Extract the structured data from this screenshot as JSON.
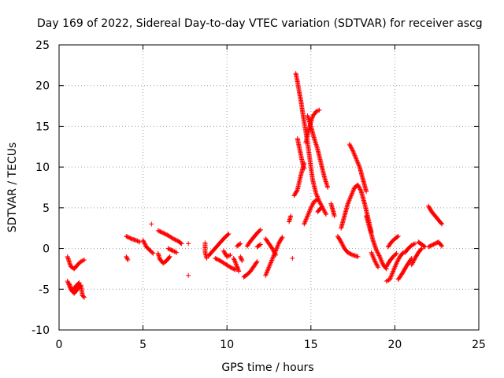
{
  "chart_data": {
    "type": "scatter",
    "title": "Day 169 of 2022, Sidereal Day-to-day VTEC variation (SDTVAR) for receiver ascg",
    "xlabel": "GPS time / hours",
    "ylabel": "SDTVAR / TECUs",
    "xlim": [
      0,
      25
    ],
    "ylim": [
      -10,
      25
    ],
    "xticks": [
      "0",
      "5",
      "10",
      "15",
      "20",
      "25"
    ],
    "yticks": [
      "-10",
      "-5",
      "0",
      "5",
      "10",
      "15",
      "20",
      "25"
    ],
    "grid": true,
    "marker": "+",
    "color": "#ff0000",
    "series": [
      {
        "name": "SDTVAR",
        "tracks": [
          [
            [
              0.5,
              -1.0
            ],
            [
              0.7,
              -2.2
            ],
            [
              0.9,
              -2.5
            ],
            [
              1.1,
              -2.0
            ],
            [
              1.3,
              -1.6
            ],
            [
              1.5,
              -1.4
            ]
          ],
          [
            [
              0.5,
              -4.0
            ],
            [
              0.7,
              -5.0
            ],
            [
              0.9,
              -5.5
            ],
            [
              1.1,
              -5.0
            ],
            [
              1.3,
              -4.5
            ],
            [
              1.4,
              -5.8
            ],
            [
              1.5,
              -6.0
            ]
          ],
          [
            [
              0.6,
              -4.3
            ],
            [
              0.8,
              -5.3
            ],
            [
              1.0,
              -4.6
            ],
            [
              1.2,
              -4.2
            ]
          ],
          [
            [
              4.0,
              1.5
            ],
            [
              4.3,
              1.2
            ],
            [
              4.6,
              1.0
            ],
            [
              4.8,
              0.8
            ]
          ],
          [
            [
              4.0,
              -1.0
            ],
            [
              4.1,
              -1.4
            ]
          ],
          [
            [
              5.0,
              1.0
            ],
            [
              5.2,
              0.2
            ],
            [
              5.4,
              -0.2
            ],
            [
              5.6,
              -0.6
            ]
          ],
          [
            [
              5.5,
              3.0
            ]
          ],
          [
            [
              5.9,
              -0.6
            ],
            [
              6.0,
              -1.3
            ],
            [
              6.2,
              -1.8
            ],
            [
              6.4,
              -1.5
            ],
            [
              6.6,
              -1.0
            ]
          ],
          [
            [
              5.9,
              2.2
            ],
            [
              6.2,
              1.9
            ],
            [
              6.5,
              1.6
            ],
            [
              6.8,
              1.2
            ],
            [
              7.1,
              0.9
            ],
            [
              7.3,
              0.6
            ]
          ],
          [
            [
              6.5,
              0.0
            ],
            [
              6.8,
              -0.3
            ],
            [
              7.0,
              -0.5
            ]
          ],
          [
            [
              7.7,
              0.6
            ]
          ],
          [
            [
              7.7,
              -3.3
            ]
          ],
          [
            [
              8.7,
              0.7
            ],
            [
              8.7,
              -0.5
            ],
            [
              8.8,
              -1.2
            ]
          ],
          [
            [
              8.9,
              -0.9
            ],
            [
              9.2,
              -0.2
            ],
            [
              9.5,
              0.5
            ],
            [
              9.8,
              1.2
            ],
            [
              10.1,
              1.8
            ]
          ],
          [
            [
              9.3,
              -1.2
            ],
            [
              9.6,
              -1.5
            ],
            [
              9.9,
              -1.9
            ],
            [
              10.2,
              -2.3
            ],
            [
              10.5,
              -2.6
            ]
          ],
          [
            [
              9.8,
              -0.3
            ],
            [
              10.0,
              -1.0
            ],
            [
              10.2,
              -0.8
            ]
          ],
          [
            [
              10.4,
              -1.2
            ],
            [
              10.6,
              -2.2
            ],
            [
              10.7,
              -2.8
            ]
          ],
          [
            [
              10.8,
              -1.0
            ],
            [
              10.9,
              -1.5
            ]
          ],
          [
            [
              10.6,
              0.3
            ],
            [
              10.8,
              0.6
            ]
          ],
          [
            [
              11.0,
              -3.5
            ],
            [
              11.2,
              -3.2
            ],
            [
              11.4,
              -2.8
            ],
            [
              11.6,
              -2.2
            ],
            [
              11.8,
              -1.6
            ]
          ],
          [
            [
              11.2,
              0.3
            ],
            [
              11.4,
              0.9
            ],
            [
              11.6,
              1.4
            ],
            [
              11.8,
              1.9
            ],
            [
              12.0,
              2.3
            ]
          ],
          [
            [
              11.8,
              0.2
            ],
            [
              12.0,
              0.5
            ]
          ],
          [
            [
              12.3,
              -3.3
            ],
            [
              12.5,
              -2.3
            ],
            [
              12.7,
              -1.3
            ],
            [
              12.9,
              -0.3
            ],
            [
              13.1,
              0.7
            ],
            [
              13.3,
              1.4
            ]
          ],
          [
            [
              12.3,
              1.2
            ],
            [
              12.5,
              0.6
            ],
            [
              12.7,
              0.0
            ],
            [
              12.9,
              -0.8
            ]
          ],
          [
            [
              13.7,
              3.3
            ],
            [
              13.8,
              4.0
            ]
          ],
          [
            [
              13.9,
              -1.2
            ]
          ],
          [
            [
              14.0,
              6.5
            ],
            [
              14.2,
              7.2
            ],
            [
              14.4,
              9.0
            ],
            [
              14.6,
              10.5
            ]
          ],
          [
            [
              14.1,
              21.5
            ],
            [
              14.2,
              20.5
            ],
            [
              14.3,
              19.3
            ],
            [
              14.4,
              18.2
            ],
            [
              14.5,
              16.8
            ],
            [
              14.6,
              15.5
            ],
            [
              14.7,
              14.3
            ],
            [
              14.8,
              13.0
            ],
            [
              14.9,
              11.5
            ],
            [
              15.0,
              10.0
            ],
            [
              15.1,
              8.5
            ],
            [
              15.3,
              6.8
            ],
            [
              15.5,
              5.8
            ],
            [
              15.7,
              5.0
            ],
            [
              15.9,
              4.2
            ]
          ],
          [
            [
              14.2,
              13.5
            ],
            [
              14.3,
              12.5
            ],
            [
              14.4,
              11.5
            ],
            [
              14.5,
              10.5
            ],
            [
              14.6,
              9.8
            ]
          ],
          [
            [
              14.8,
              16.3
            ],
            [
              15.0,
              15.0
            ],
            [
              15.2,
              13.5
            ],
            [
              15.4,
              12.2
            ],
            [
              15.6,
              10.5
            ],
            [
              15.8,
              8.8
            ],
            [
              16.0,
              7.5
            ]
          ],
          [
            [
              14.7,
              13.0
            ],
            [
              14.9,
              14.8
            ],
            [
              15.1,
              16.2
            ],
            [
              15.3,
              16.8
            ],
            [
              15.5,
              17.0
            ]
          ],
          [
            [
              14.6,
              3.0
            ],
            [
              14.8,
              4.0
            ],
            [
              15.0,
              5.0
            ],
            [
              15.2,
              5.8
            ],
            [
              15.4,
              6.0
            ]
          ],
          [
            [
              15.4,
              4.5
            ],
            [
              15.6,
              5.0
            ]
          ],
          [
            [
              16.2,
              5.5
            ],
            [
              16.3,
              4.8
            ],
            [
              16.4,
              4.0
            ]
          ],
          [
            [
              16.6,
              1.5
            ],
            [
              16.8,
              0.8
            ],
            [
              17.0,
              0.0
            ],
            [
              17.2,
              -0.5
            ],
            [
              17.5,
              -0.8
            ],
            [
              17.8,
              -1.0
            ]
          ],
          [
            [
              16.8,
              2.5
            ],
            [
              17.0,
              4.0
            ],
            [
              17.2,
              5.5
            ],
            [
              17.4,
              6.5
            ],
            [
              17.6,
              7.5
            ],
            [
              17.8,
              7.8
            ],
            [
              18.0,
              7.0
            ],
            [
              18.2,
              5.5
            ],
            [
              18.4,
              3.8
            ],
            [
              18.6,
              2.0
            ]
          ],
          [
            [
              17.3,
              12.8
            ],
            [
              17.5,
              12.0
            ],
            [
              17.7,
              11.0
            ],
            [
              17.9,
              10.0
            ],
            [
              18.1,
              8.5
            ],
            [
              18.3,
              7.0
            ]
          ],
          [
            [
              18.3,
              4.0
            ],
            [
              18.5,
              2.5
            ],
            [
              18.7,
              1.0
            ],
            [
              18.9,
              -0.2
            ],
            [
              19.1,
              -1.0
            ],
            [
              19.3,
              -2.0
            ],
            [
              19.5,
              -2.5
            ]
          ],
          [
            [
              18.6,
              -0.5
            ],
            [
              18.8,
              -1.5
            ],
            [
              19.0,
              -2.3
            ]
          ],
          [
            [
              19.5,
              -4.0
            ],
            [
              19.7,
              -3.8
            ],
            [
              19.9,
              -2.8
            ],
            [
              20.1,
              -1.8
            ],
            [
              20.3,
              -1.0
            ],
            [
              20.5,
              -0.5
            ]
          ],
          [
            [
              19.6,
              0.2
            ],
            [
              19.8,
              0.8
            ],
            [
              20.0,
              1.2
            ],
            [
              20.2,
              1.5
            ]
          ],
          [
            [
              19.5,
              -2.2
            ],
            [
              19.7,
              -1.5
            ],
            [
              19.9,
              -1.0
            ],
            [
              20.1,
              -0.6
            ]
          ],
          [
            [
              20.2,
              -3.8
            ],
            [
              20.4,
              -3.2
            ],
            [
              20.6,
              -2.5
            ],
            [
              20.8,
              -1.8
            ],
            [
              21.0,
              -1.2
            ]
          ],
          [
            [
              20.6,
              -0.5
            ],
            [
              20.8,
              0.0
            ],
            [
              21.0,
              0.4
            ],
            [
              21.2,
              0.6
            ]
          ],
          [
            [
              21.0,
              -2.0
            ],
            [
              21.2,
              -1.2
            ],
            [
              21.4,
              -0.5
            ],
            [
              21.6,
              0.0
            ]
          ],
          [
            [
              21.4,
              0.8
            ],
            [
              21.6,
              0.5
            ],
            [
              21.8,
              0.2
            ]
          ],
          [
            [
              22.0,
              5.2
            ],
            [
              22.2,
              4.5
            ],
            [
              22.4,
              4.0
            ],
            [
              22.6,
              3.5
            ],
            [
              22.8,
              3.0
            ]
          ],
          [
            [
              22.0,
              0.2
            ],
            [
              22.3,
              0.5
            ],
            [
              22.6,
              0.8
            ],
            [
              22.8,
              0.3
            ]
          ]
        ]
      }
    ]
  }
}
